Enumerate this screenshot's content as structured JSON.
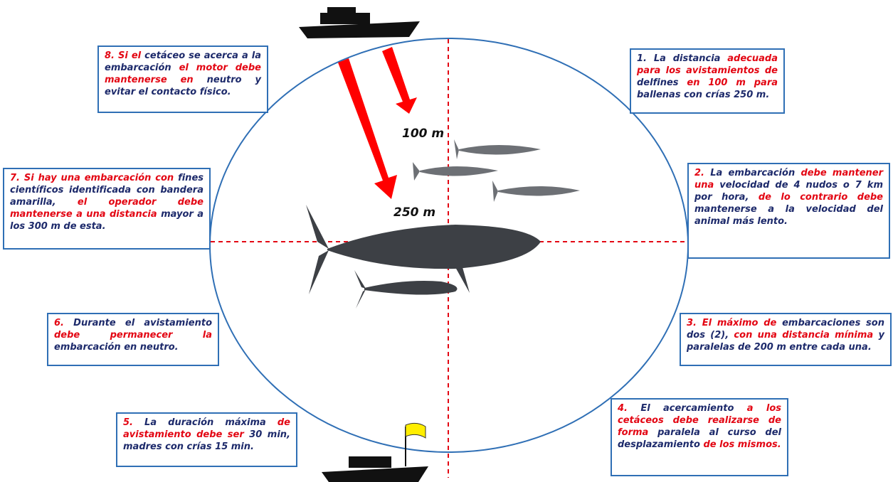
{
  "labels": {
    "near": "100 m",
    "far": "250 m"
  },
  "boxes": [
    {
      "segments": [
        {
          "text": "8. Si el",
          "color": "#e30613"
        },
        {
          "text": " cetáceo se acerca a la embarcación",
          "color": "#1d2a6b"
        },
        {
          "text": " el motor debe mantenerse en",
          "color": "#e30613"
        },
        {
          "text": " neutro y evitar el contacto físico.",
          "color": "#1d2a6b"
        }
      ]
    },
    {
      "segments": [
        {
          "text": "1. La distancia ",
          "color": "#1d2a6b"
        },
        {
          "text": "adecuada para los avistamientos de",
          "color": "#e30613"
        },
        {
          "text": " delfines ",
          "color": "#1d2a6b"
        },
        {
          "text": "en 100 m para",
          "color": "#e30613"
        },
        {
          "text": " ballenas con crías 250 m.",
          "color": "#1d2a6b"
        }
      ]
    },
    {
      "segments": [
        {
          "text": "7. Si hay una embarcación con",
          "color": "#e30613"
        },
        {
          "text": " fines científicos identificada con bandera amarilla,",
          "color": "#1d2a6b"
        },
        {
          "text": " el operador debe mantenerse a una distancia",
          "color": "#e30613"
        },
        {
          "text": " mayor a los  300 m de esta.",
          "color": "#1d2a6b"
        }
      ]
    },
    {
      "segments": [
        {
          "text": "2.",
          "color": "#e30613"
        },
        {
          "text": " La embarcación ",
          "color": "#1d2a6b"
        },
        {
          "text": "debe mantener una",
          "color": "#e30613"
        },
        {
          "text": " velocidad de 4 nudos o 7 km por hora,",
          "color": "#1d2a6b"
        },
        {
          "text": " de lo contrario debe",
          "color": "#e30613"
        },
        {
          "text": " mantenerse a la velocidad del animal más lento.",
          "color": "#1d2a6b"
        }
      ]
    },
    {
      "segments": [
        {
          "text": "6.",
          "color": "#e30613"
        },
        {
          "text": " Durante el avistamiento",
          "color": "#1d2a6b"
        },
        {
          "text": " debe permanecer la",
          "color": "#e30613"
        },
        {
          "text": " embarcación en neutro.",
          "color": "#1d2a6b"
        }
      ]
    },
    {
      "segments": [
        {
          "text": "3. El máximo de",
          "color": "#e30613"
        },
        {
          "text": " embarcaciones son dos (2),",
          "color": "#1d2a6b"
        },
        {
          "text": " con una distancia mínima",
          "color": "#e30613"
        },
        {
          "text": " y paralelas de 200 m entre cada una.",
          "color": "#1d2a6b"
        }
      ]
    },
    {
      "segments": [
        {
          "text": "5.",
          "color": "#e30613"
        },
        {
          "text": " La duración máxima ",
          "color": "#1d2a6b"
        },
        {
          "text": "de avistamiento debe ser",
          "color": "#e30613"
        },
        {
          "text": " 30 min, madres con crías 15 min.",
          "color": "#1d2a6b"
        }
      ]
    },
    {
      "segments": [
        {
          "text": "4.",
          "color": "#e30613"
        },
        {
          "text": " El acercamiento ",
          "color": "#1d2a6b"
        },
        {
          "text": "a los cetáceos debe realizarse de forma",
          "color": "#e30613"
        },
        {
          "text": " paralela al curso del desplazamiento ",
          "color": "#1d2a6b"
        },
        {
          "text": "de los mismos.",
          "color": "#e30613"
        }
      ]
    }
  ]
}
